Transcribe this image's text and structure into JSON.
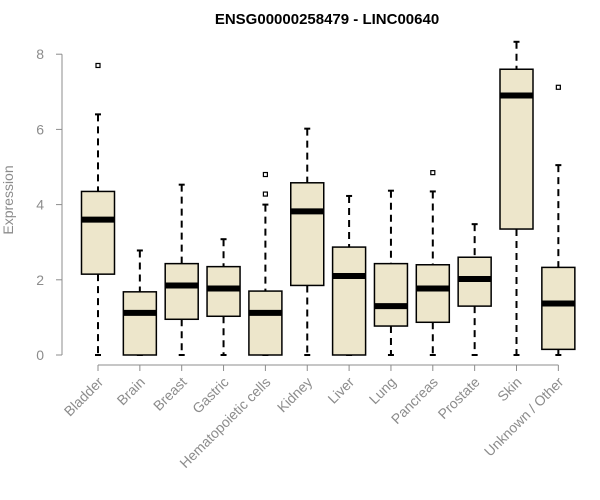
{
  "chart_data": {
    "type": "boxplot",
    "title": "ENSG00000258479 - LINC00640",
    "xlabel": "",
    "ylabel": "Expression",
    "ylim": [
      0,
      8.3
    ],
    "yticks": [
      0,
      2,
      4,
      6,
      8
    ],
    "grid": false,
    "legend": "none",
    "box_fill": "#ede6cb",
    "box_stroke": "#000000",
    "axis_color": "#8c8c8c",
    "categories": [
      "Bladder",
      "Brain",
      "Breast",
      "Gastric",
      "Hematopoietic cells",
      "Kidney",
      "Liver",
      "Lung",
      "Pancreas",
      "Prostate",
      "Skin",
      "Unknown / Other"
    ],
    "boxes": [
      {
        "category": "Bladder",
        "min": 0,
        "q1": 2.15,
        "median": 3.6,
        "q3": 4.35,
        "max": 6.4,
        "outliers": [
          7.7
        ]
      },
      {
        "category": "Brain",
        "min": 0,
        "q1": 0,
        "median": 1.12,
        "q3": 1.68,
        "max": 2.78,
        "outliers": []
      },
      {
        "category": "Breast",
        "min": 0,
        "q1": 0.95,
        "median": 1.85,
        "q3": 2.43,
        "max": 4.53,
        "outliers": []
      },
      {
        "category": "Gastric",
        "min": 0,
        "q1": 1.03,
        "median": 1.77,
        "q3": 2.35,
        "max": 3.08,
        "outliers": []
      },
      {
        "category": "Hematopoietic cells",
        "min": 0,
        "q1": 0,
        "median": 1.12,
        "q3": 1.7,
        "max": 4.0,
        "outliers": [
          4.28,
          4.8
        ]
      },
      {
        "category": "Kidney",
        "min": 0,
        "q1": 1.85,
        "median": 3.82,
        "q3": 4.58,
        "max": 6.02,
        "outliers": []
      },
      {
        "category": "Liver",
        "min": 0,
        "q1": 0,
        "median": 2.1,
        "q3": 2.87,
        "max": 4.23,
        "outliers": []
      },
      {
        "category": "Lung",
        "min": 0,
        "q1": 0.77,
        "median": 1.3,
        "q3": 2.43,
        "max": 4.37,
        "outliers": []
      },
      {
        "category": "Pancreas",
        "min": 0,
        "q1": 0.87,
        "median": 1.77,
        "q3": 2.4,
        "max": 4.35,
        "outliers": [
          4.85
        ]
      },
      {
        "category": "Prostate",
        "min": 0,
        "q1": 1.3,
        "median": 2.02,
        "q3": 2.6,
        "max": 3.48,
        "outliers": []
      },
      {
        "category": "Skin",
        "min": 0,
        "q1": 3.35,
        "median": 6.9,
        "q3": 7.6,
        "max": 8.33,
        "outliers": []
      },
      {
        "category": "Unknown / Other",
        "min": 0,
        "q1": 0.15,
        "median": 1.37,
        "q3": 2.33,
        "max": 5.05,
        "outliers": [
          7.12
        ]
      }
    ]
  }
}
